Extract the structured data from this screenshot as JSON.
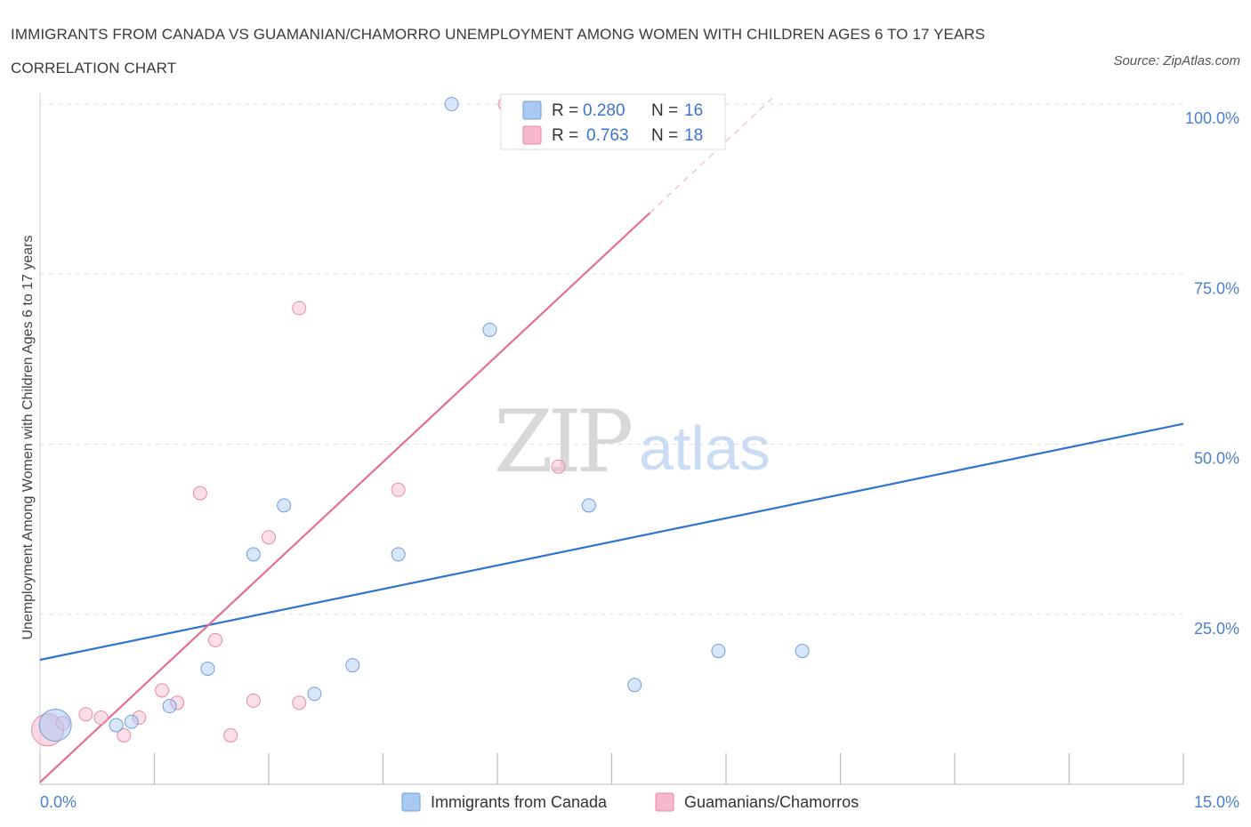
{
  "header": {
    "title": "IMMIGRANTS FROM CANADA VS GUAMANIAN/CHAMORRO UNEMPLOYMENT AMONG WOMEN WITH CHILDREN AGES 6 TO 17 YEARS CORRELATION CHART",
    "source": "Source: ZipAtlas.com"
  },
  "watermark": {
    "zip": "ZIP",
    "atlas": "atlas"
  },
  "legend_top": [
    {
      "r_label": "R =",
      "r_value": "0.280",
      "n_label": "N =",
      "n_value": "16",
      "color": "#a9c8f2"
    },
    {
      "r_label": "R =",
      "r_value": "0.763",
      "n_label": "N =",
      "n_value": "18",
      "color": "#f7b8cc"
    }
  ],
  "legend_bottom": [
    {
      "label": "Immigrants from Canada",
      "color": "#a9c8f2"
    },
    {
      "label": "Guamanians/Chamorros",
      "color": "#f7b8cc"
    }
  ],
  "chart_data": {
    "type": "scatter",
    "title": "IMMIGRANTS FROM CANADA VS GUAMANIAN/CHAMORRO UNEMPLOYMENT AMONG WOMEN WITH CHILDREN AGES 6 TO 17 YEARS CORRELATION CHART",
    "ylabel": "Unemployment Among Women with Children Ages 6 to 17 years",
    "xlabel": "",
    "xlim": [
      0,
      15
    ],
    "ylim": [
      0,
      100
    ],
    "x_tick_labels": [
      "0.0%",
      "15.0%"
    ],
    "y_tick_labels": [
      "100.0%",
      "75.0%",
      "50.0%",
      "25.0%"
    ],
    "y_tick_values": [
      100,
      75,
      50,
      25
    ],
    "grid": true,
    "legend_position": "top-center",
    "series": [
      {
        "name": "Immigrants from Canada",
        "color": "#a9c8f2",
        "stroke": "#6f9fe0",
        "trend_color": "#2f74d0",
        "r": 0.28,
        "n": 16,
        "trend": {
          "x0": 0,
          "y0": 18.3,
          "x1": 15,
          "y1": 53.0
        },
        "points": [
          {
            "x": 0.2,
            "y": 8.7,
            "big": true
          },
          {
            "x": 1.0,
            "y": 8.7
          },
          {
            "x": 1.2,
            "y": 9.2
          },
          {
            "x": 1.7,
            "y": 11.5
          },
          {
            "x": 2.2,
            "y": 17.0
          },
          {
            "x": 2.8,
            "y": 33.8
          },
          {
            "x": 3.2,
            "y": 41.0
          },
          {
            "x": 3.6,
            "y": 13.3
          },
          {
            "x": 4.1,
            "y": 17.5
          },
          {
            "x": 4.7,
            "y": 33.8
          },
          {
            "x": 5.4,
            "y": 100.0
          },
          {
            "x": 5.9,
            "y": 66.8
          },
          {
            "x": 7.2,
            "y": 41.0
          },
          {
            "x": 7.8,
            "y": 14.6
          },
          {
            "x": 8.9,
            "y": 19.6
          },
          {
            "x": 10.0,
            "y": 19.6
          }
        ]
      },
      {
        "name": "Guamanians/Chamorros",
        "color": "#f7b8cc",
        "stroke": "#e889a8",
        "trend_color": "#e36f97",
        "r": 0.763,
        "n": 18,
        "trend": {
          "x0": 0,
          "y0": 0.3,
          "x1": 8.0,
          "y1": 84.0,
          "x_dash_end": 9.6,
          "y_dash_end": 100.8
        },
        "points": [
          {
            "x": 0.1,
            "y": 8.0,
            "big": true
          },
          {
            "x": 0.3,
            "y": 9.0
          },
          {
            "x": 0.6,
            "y": 10.3
          },
          {
            "x": 0.8,
            "y": 9.8
          },
          {
            "x": 1.1,
            "y": 7.2
          },
          {
            "x": 1.3,
            "y": 9.8
          },
          {
            "x": 1.6,
            "y": 13.8
          },
          {
            "x": 1.8,
            "y": 12.0
          },
          {
            "x": 2.1,
            "y": 42.8
          },
          {
            "x": 2.3,
            "y": 21.2
          },
          {
            "x": 2.5,
            "y": 7.2
          },
          {
            "x": 2.8,
            "y": 12.3
          },
          {
            "x": 3.0,
            "y": 36.3
          },
          {
            "x": 3.4,
            "y": 70.0
          },
          {
            "x": 3.4,
            "y": 12.0
          },
          {
            "x": 4.7,
            "y": 43.3
          },
          {
            "x": 6.1,
            "y": 100.0
          },
          {
            "x": 6.8,
            "y": 46.7
          }
        ]
      }
    ]
  }
}
